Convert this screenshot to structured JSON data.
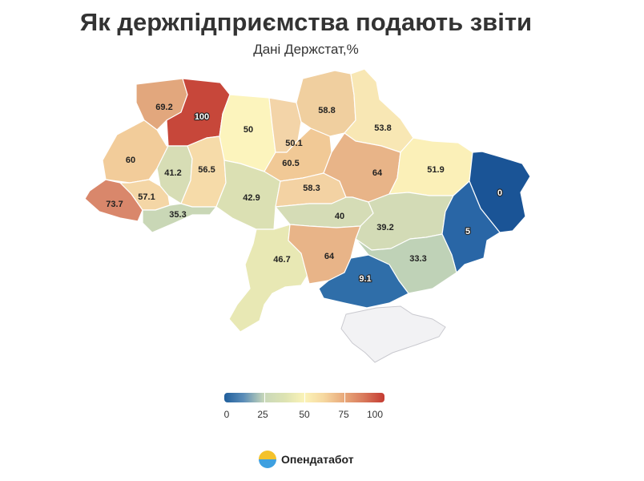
{
  "title": "Як держпідприємства подають звіти",
  "subtitle": "Дані Держстат,%",
  "legend": {
    "ticks": [
      "0",
      "25",
      "50",
      "75",
      "100"
    ]
  },
  "brand": {
    "name": "Опендатабот",
    "logo_icon": "opendatabot-logo-icon"
  },
  "regions": [
    {
      "id": "volyn",
      "value": "69.2",
      "color": "#e2a77d"
    },
    {
      "id": "rivne",
      "value": "100",
      "color": "#c7473a"
    },
    {
      "id": "zhytomyr",
      "value": "50",
      "color": "#fcf4bd"
    },
    {
      "id": "kyiv-oblast",
      "value": "50.1",
      "color": "#f3d4a8"
    },
    {
      "id": "kyiv-city",
      "value": "60.5",
      "color": "#f1c996"
    },
    {
      "id": "chernihiv",
      "value": "58.8",
      "color": "#f0cf9f"
    },
    {
      "id": "sumy",
      "value": "53.8",
      "color": "#f8e7b4"
    },
    {
      "id": "lviv",
      "value": "60",
      "color": "#f2cc9a"
    },
    {
      "id": "ternopil",
      "value": "41.2",
      "color": "#d7ddb5"
    },
    {
      "id": "khmelnytskyi",
      "value": "56.5",
      "color": "#f6dba9"
    },
    {
      "id": "vinnytsia",
      "value": "42.9",
      "color": "#dbe0b3"
    },
    {
      "id": "cherkasy",
      "value": "58.3",
      "color": "#f3d2a3"
    },
    {
      "id": "poltava",
      "value": "64",
      "color": "#e8b488"
    },
    {
      "id": "kharkiv",
      "value": "51.9",
      "color": "#fbf0b8"
    },
    {
      "id": "luhansk",
      "value": "0",
      "color": "#1a5496"
    },
    {
      "id": "zakarpattia",
      "value": "73.7",
      "color": "#d9876b"
    },
    {
      "id": "ivano-frankivsk",
      "value": "57.1",
      "color": "#f4d6a6"
    },
    {
      "id": "chernivtsi",
      "value": "35.3",
      "color": "#c9d7b6"
    },
    {
      "id": "kirovohrad",
      "value": "40",
      "color": "#d5dcb6"
    },
    {
      "id": "dnipropetrovsk",
      "value": "39.2",
      "color": "#d3dbb6"
    },
    {
      "id": "donetsk",
      "value": "5",
      "color": "#2966a6"
    },
    {
      "id": "odesa",
      "value": "46.7",
      "color": "#e8e8b4"
    },
    {
      "id": "mykolaiv",
      "value": "64",
      "color": "#e8b488"
    },
    {
      "id": "zaporizhzhia",
      "value": "33.3",
      "color": "#bfd2b7"
    },
    {
      "id": "kherson",
      "value": "9.1",
      "color": "#2f6ea9"
    }
  ]
}
